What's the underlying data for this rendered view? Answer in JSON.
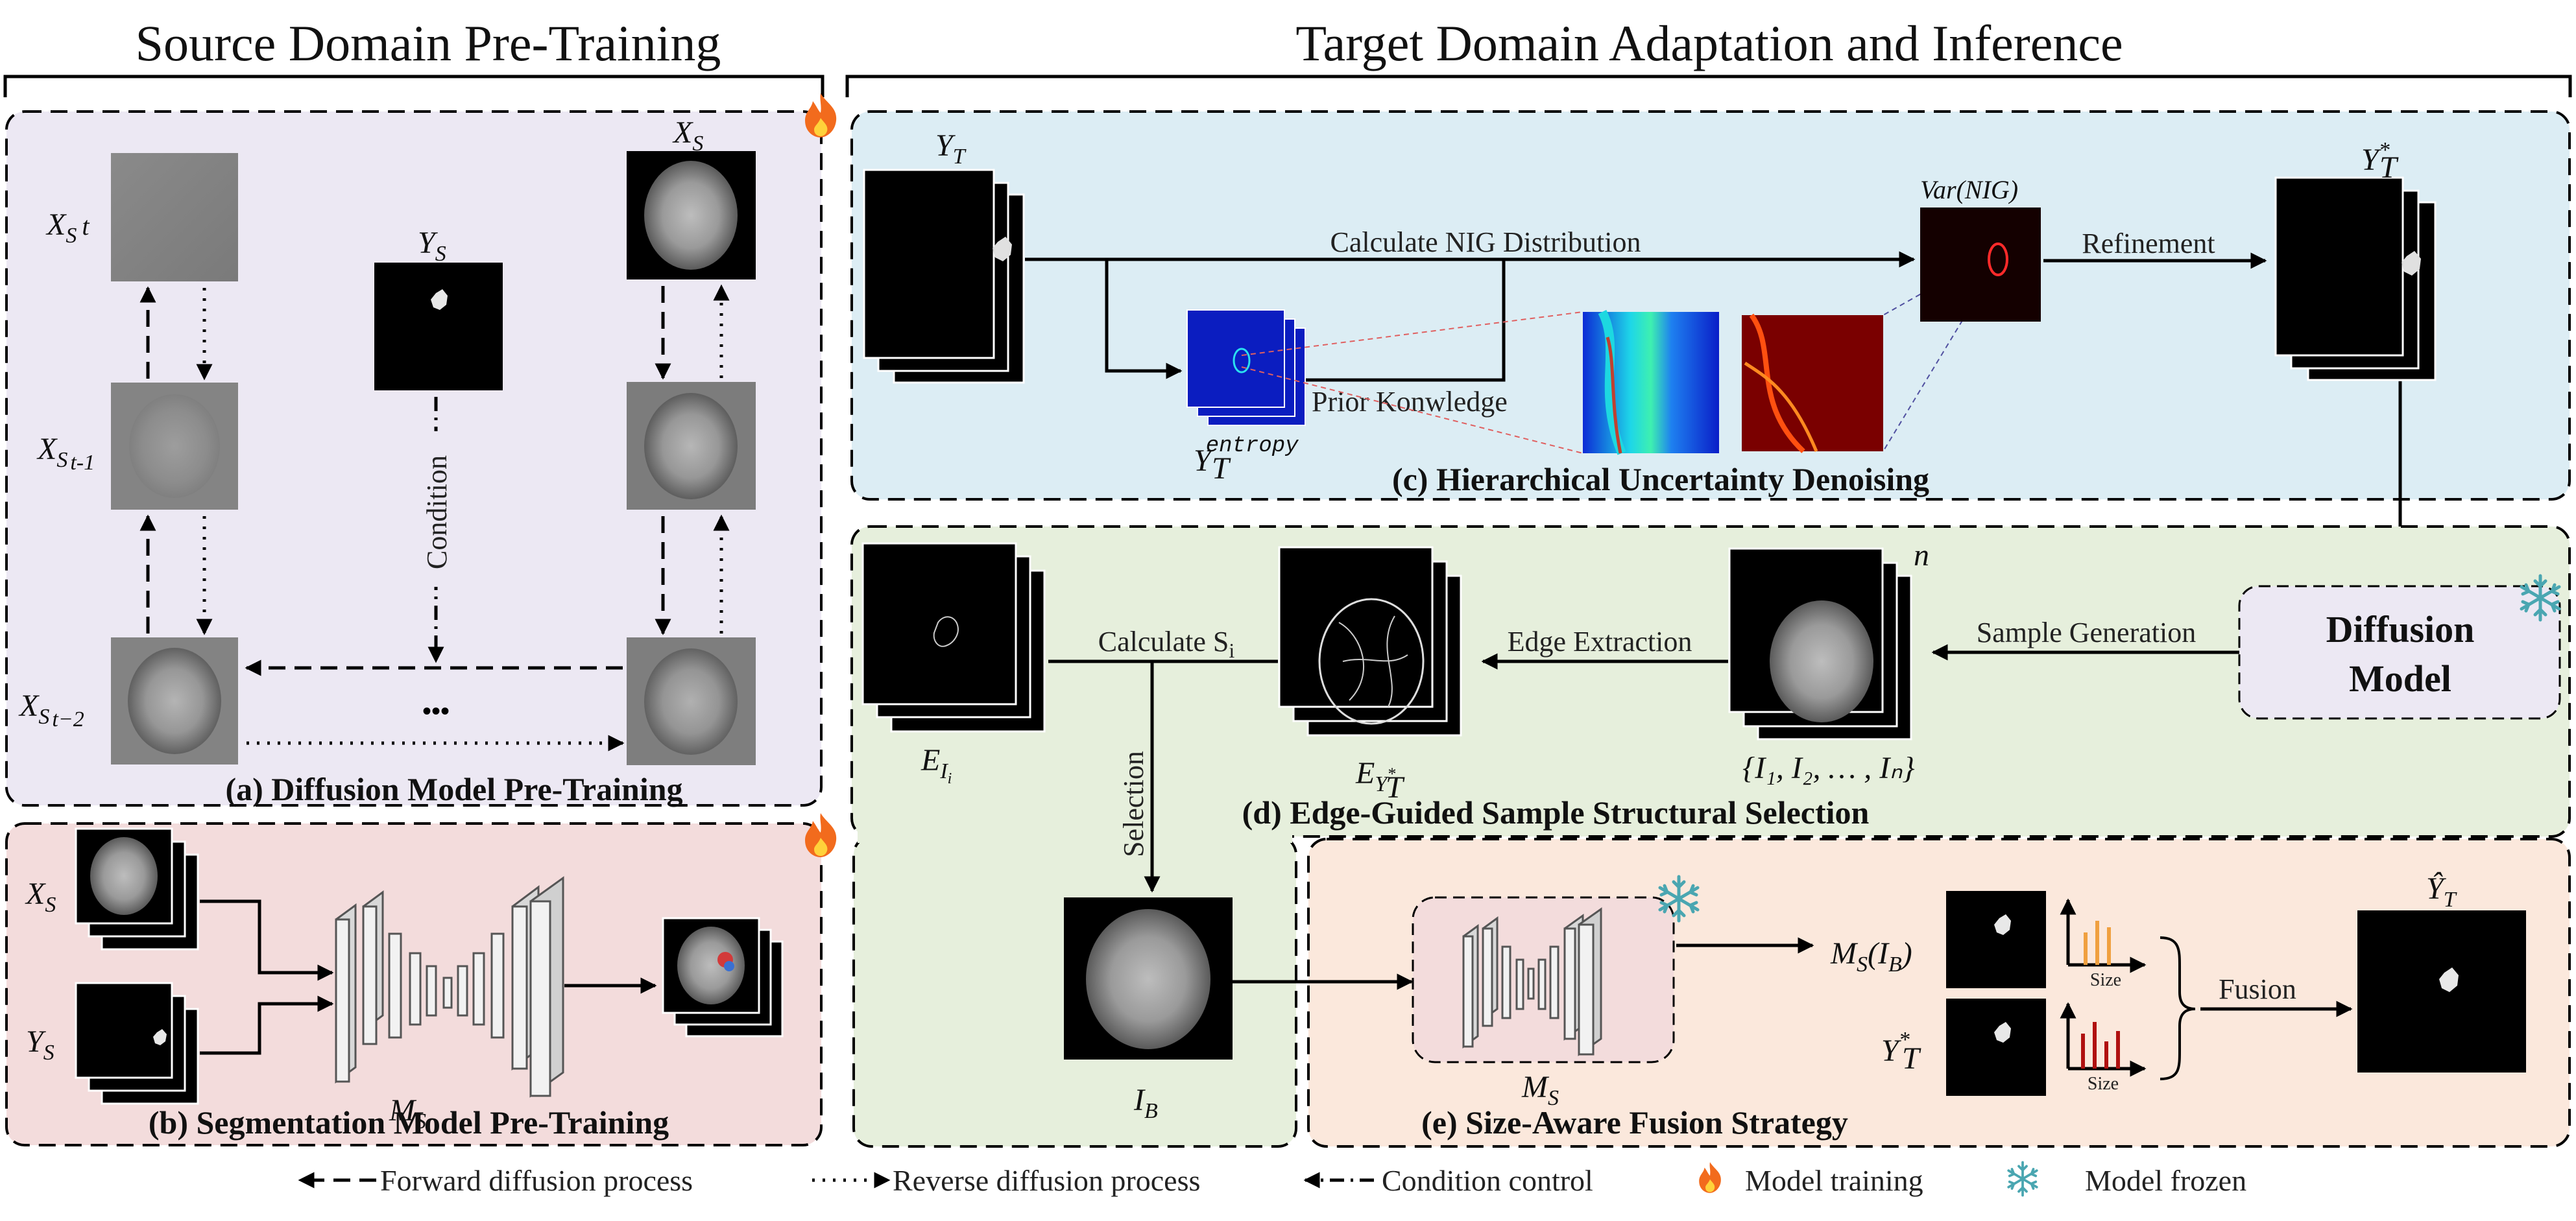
{
  "headers": {
    "left": "Source Domain Pre-Training",
    "right": "Target Domain Adaptation and Inference"
  },
  "panel_a": {
    "caption": "(a) Diffusion Model Pre-Training",
    "xs_t": "X",
    "xs_t_sub": "S",
    "xs_t_suffix": "t",
    "xs_t1_suffix": "t-1",
    "xs_t2_suffix": "t−2",
    "xs": "X",
    "xs_sub": "S",
    "ys": "Y",
    "ys_sub": "S",
    "condition": "Condition",
    "ellipsis": "•••"
  },
  "panel_b": {
    "caption": "(b) Segmentation Model Pre-Training",
    "xs": "X",
    "xs_sub": "S",
    "ys": "Y",
    "ys_sub": "S",
    "ms": "M",
    "ms_sub": "S"
  },
  "panel_c": {
    "caption": "(c) Hierarchical Uncertainty Denoising",
    "yt": "Y",
    "yt_sub": "T",
    "calc_nig": "Calculate NIG Distribution",
    "var_nig": "Var(NIG)",
    "refinement": "Refinement",
    "yt_star": "Y",
    "yt_star_sup": "*",
    "yt_star_sub": "T",
    "prior": "Prior Konwledge",
    "entropy_base": "Y",
    "entropy_sup": "entropy",
    "entropy_sub": "T"
  },
  "panel_d": {
    "caption": "(d) Edge-Guided Sample Structural Selection",
    "calc_si": "Calculate S",
    "calc_si_sub": "i",
    "edge_extraction": "Edge Extraction",
    "sample_generation": "Sample Generation",
    "diffusion_model_1": "Diffusion",
    "diffusion_model_2": "Model",
    "e_ii": "E",
    "e_ii_sub": "I",
    "e_ii_subsub": "i",
    "e_yt": "E",
    "e_yt_sub": "Y",
    "e_yt_subsub": "T",
    "e_yt_star": "*",
    "samples": "{I₁, I₂, … , Iₙ}",
    "n": "n",
    "selection": "Selection",
    "ib": "I",
    "ib_sub": "B"
  },
  "panel_e": {
    "caption": "(e) Size-Aware Fusion Strategy",
    "ms": "M",
    "ms_sub": "S",
    "ms_ib": "M",
    "ms_ib_sub": "S",
    "ms_ib_arg": "(I",
    "ms_ib_arg_sub": "B",
    "ms_ib_close": ")",
    "yt_star": "Y",
    "yt_star_sup": "*",
    "yt_star_sub": "T",
    "size1": "Size",
    "size2": "Size",
    "fusion": "Fusion",
    "yhat": "Ŷ",
    "yhat_sub": "T"
  },
  "legend": {
    "forward": "Forward diffusion process",
    "reverse": "Reverse diffusion process",
    "condition": "Condition control",
    "training": "Model training",
    "frozen": "Model frozen"
  },
  "colors": {
    "panel_a_bg": "#ece8f3",
    "panel_b_bg": "#f3dcdc",
    "panel_c_bg": "#dcedf4",
    "panel_d_bg": "#e6efdc",
    "panel_e_bg": "#fbe8dc",
    "fire": "#f26b1d",
    "snow": "#5fb8c2"
  },
  "icons": [
    "fire-icon",
    "snowflake-icon"
  ]
}
